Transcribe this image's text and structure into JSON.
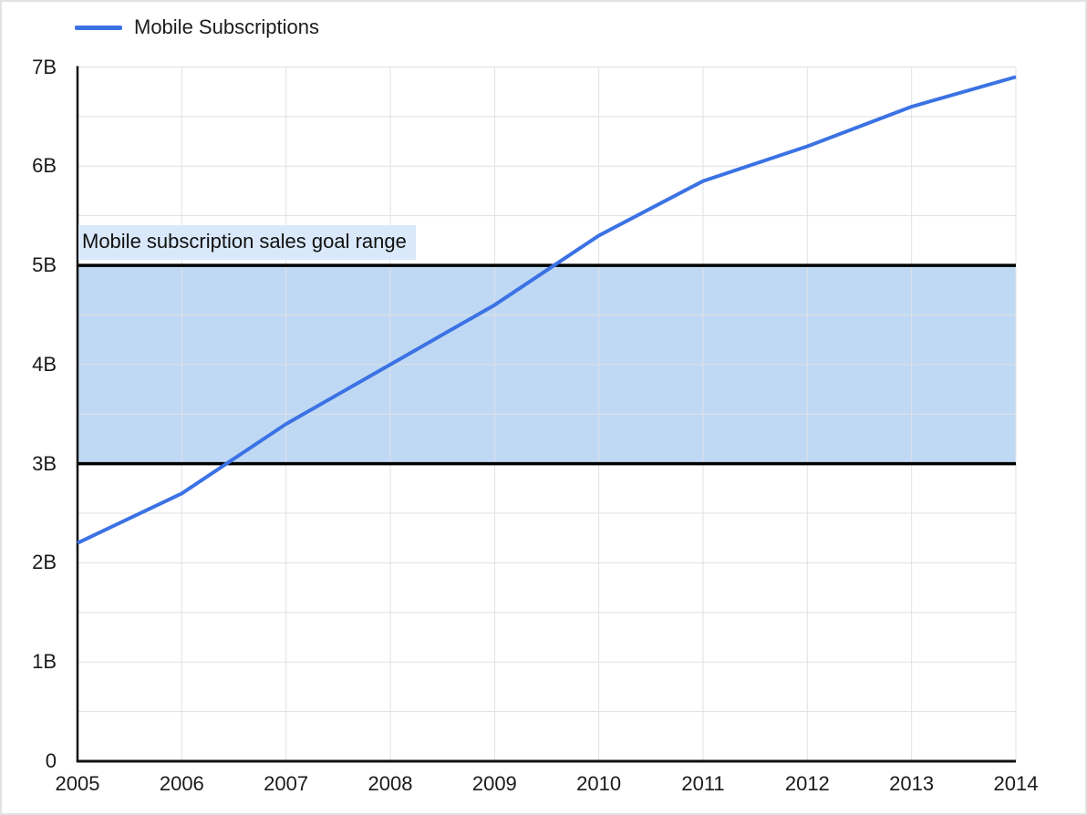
{
  "chart_data": {
    "type": "line",
    "title": "",
    "xlabel": "",
    "ylabel": "",
    "unit": "billions",
    "x": [
      2005,
      2006,
      2007,
      2008,
      2009,
      2010,
      2011,
      2012,
      2013,
      2014
    ],
    "x_tick_labels": [
      "2005",
      "2006",
      "2007",
      "2008",
      "2009",
      "2010",
      "2011",
      "2012",
      "2013",
      "2014"
    ],
    "ylim": [
      0,
      7
    ],
    "y_tick_values": [
      0,
      1,
      2,
      3,
      4,
      5,
      6,
      7
    ],
    "y_tick_labels": [
      "0",
      "1B",
      "2B",
      "3B",
      "4B",
      "5B",
      "6B",
      "7B"
    ],
    "grid": {
      "h_step": 0.5,
      "vertical_at_each_year": true,
      "color": "#e0e1e3"
    },
    "axis_color": "#111111",
    "series": [
      {
        "name": "Mobile Subscriptions",
        "color": "#3b72e4",
        "values": [
          2.2,
          2.7,
          3.4,
          4.0,
          4.6,
          5.3,
          5.85,
          6.2,
          6.6,
          6.9
        ]
      }
    ],
    "legend": {
      "position": "top-left",
      "label": "Mobile Subscriptions"
    },
    "band": {
      "from": 3,
      "to": 5,
      "fill": "#bfd9f4",
      "border_color": "#000000",
      "label": "Mobile subscription sales goal range",
      "label_bg": "#d9e8fa"
    }
  }
}
